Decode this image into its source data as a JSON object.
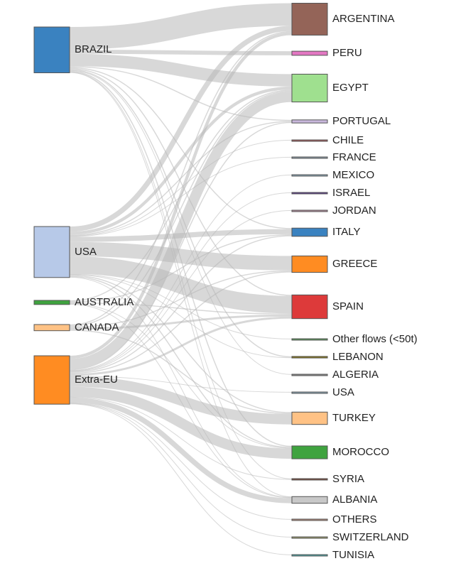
{
  "chart_data": {
    "type": "sankey",
    "sources": [
      {
        "id": "BRAZIL",
        "label": "BRAZIL",
        "color": "#3a82c0"
      },
      {
        "id": "USA_SRC",
        "label": "USA",
        "color": "#b7c9e8"
      },
      {
        "id": "AUSTRALIA",
        "label": "AUSTRALIA",
        "color": "#3fa33f"
      },
      {
        "id": "CANADA",
        "label": "CANADA",
        "color": "#ffc285"
      },
      {
        "id": "EXTRA_EU",
        "label": "Extra-EU",
        "color": "#ff8c22"
      }
    ],
    "targets": [
      {
        "id": "ARGENTINA",
        "label": "ARGENTINA",
        "color": "#946458"
      },
      {
        "id": "PERU",
        "label": "PERU",
        "color": "#e377c2"
      },
      {
        "id": "EGYPT",
        "label": "EGYPT",
        "color": "#9fe08f"
      },
      {
        "id": "PORTUGAL",
        "label": "PORTUGAL",
        "color": "#c9b8dc"
      },
      {
        "id": "CHILE",
        "label": "CHILE",
        "color": "#a55a5a"
      },
      {
        "id": "FRANCE",
        "label": "FRANCE",
        "color": "#8a9aa8"
      },
      {
        "id": "MEXICO",
        "label": "MEXICO",
        "color": "#8aa6b8"
      },
      {
        "id": "ISRAEL",
        "label": "ISRAEL",
        "color": "#5c3a8a"
      },
      {
        "id": "JORDAN",
        "label": "JORDAN",
        "color": "#b58a9a"
      },
      {
        "id": "ITALY",
        "label": "ITALY",
        "color": "#3a82c0"
      },
      {
        "id": "GREECE",
        "label": "GREECE",
        "color": "#ff8c22"
      },
      {
        "id": "SPAIN",
        "label": "SPAIN",
        "color": "#dd3a3a"
      },
      {
        "id": "OTHER_FLOWS",
        "label": "Other flows (<50t)",
        "color": "#5a9a5a"
      },
      {
        "id": "LEBANON",
        "label": "LEBANON",
        "color": "#8a7a1a"
      },
      {
        "id": "ALGERIA",
        "label": "ALGERIA",
        "color": "#8a8a8a"
      },
      {
        "id": "USA_TGT",
        "label": "USA",
        "color": "#8aa6b8"
      },
      {
        "id": "TURKEY",
        "label": "TURKEY",
        "color": "#ffc285"
      },
      {
        "id": "MOROCCO",
        "label": "MOROCCO",
        "color": "#3fa33f"
      },
      {
        "id": "SYRIA",
        "label": "SYRIA",
        "color": "#7a4a3a"
      },
      {
        "id": "ALBANIA",
        "label": "ALBANIA",
        "color": "#c8c8c8"
      },
      {
        "id": "OTHERS",
        "label": "OTHERS",
        "color": "#b58a7a"
      },
      {
        "id": "SWITZERLAND",
        "label": "SWITZERLAND",
        "color": "#9a9a6a"
      },
      {
        "id": "TUNISIA",
        "label": "TUNISIA",
        "color": "#4aa6a6"
      }
    ],
    "links": [
      {
        "source": "BRAZIL",
        "target": "ARGENTINA",
        "value": 22
      },
      {
        "source": "BRAZIL",
        "target": "PERU",
        "value": 4
      },
      {
        "source": "BRAZIL",
        "target": "EGYPT",
        "value": 12
      },
      {
        "source": "BRAZIL",
        "target": "PORTUGAL",
        "value": 1
      },
      {
        "source": "BRAZIL",
        "target": "ITALY",
        "value": 1
      },
      {
        "source": "BRAZIL",
        "target": "SPAIN",
        "value": 1
      },
      {
        "source": "BRAZIL",
        "target": "LEBANON",
        "value": 1
      },
      {
        "source": "BRAZIL",
        "target": "ALGERIA",
        "value": 0.5
      },
      {
        "source": "BRAZIL",
        "target": "MOROCCO",
        "value": 1
      },
      {
        "source": "BRAZIL",
        "target": "SYRIA",
        "value": 0.5
      },
      {
        "source": "BRAZIL",
        "target": "ALBANIA",
        "value": 0.5
      },
      {
        "source": "USA_SRC",
        "target": "ARGENTINA",
        "value": 5
      },
      {
        "source": "USA_SRC",
        "target": "EGYPT",
        "value": 3
      },
      {
        "source": "USA_SRC",
        "target": "PORTUGAL",
        "value": 1
      },
      {
        "source": "USA_SRC",
        "target": "CHILE",
        "value": 0.5
      },
      {
        "source": "USA_SRC",
        "target": "FRANCE",
        "value": 0.5
      },
      {
        "source": "USA_SRC",
        "target": "ITALY",
        "value": 5
      },
      {
        "source": "USA_SRC",
        "target": "GREECE",
        "value": 14
      },
      {
        "source": "USA_SRC",
        "target": "SPAIN",
        "value": 17
      },
      {
        "source": "USA_SRC",
        "target": "OTHER_FLOWS",
        "value": 0.5
      },
      {
        "source": "USA_SRC",
        "target": "LEBANON",
        "value": 0.5
      },
      {
        "source": "USA_SRC",
        "target": "TURKEY",
        "value": 1
      },
      {
        "source": "USA_SRC",
        "target": "MOROCCO",
        "value": 1
      },
      {
        "source": "USA_SRC",
        "target": "ALBANIA",
        "value": 0.5
      },
      {
        "source": "AUSTRALIA",
        "target": "EGYPT",
        "value": 1
      },
      {
        "source": "AUSTRALIA",
        "target": "ITALY",
        "value": 1
      },
      {
        "source": "AUSTRALIA",
        "target": "SPAIN",
        "value": 1
      },
      {
        "source": "AUSTRALIA",
        "target": "MOROCCO",
        "value": 0.5
      },
      {
        "source": "AUSTRALIA",
        "target": "ALBANIA",
        "value": 0.5
      },
      {
        "source": "CANADA",
        "target": "ARGENTINA",
        "value": 1
      },
      {
        "source": "CANADA",
        "target": "EGYPT",
        "value": 1
      },
      {
        "source": "CANADA",
        "target": "GREECE",
        "value": 1
      },
      {
        "source": "CANADA",
        "target": "SPAIN",
        "value": 2
      },
      {
        "source": "CANADA",
        "target": "TURKEY",
        "value": 1
      },
      {
        "source": "EXTRA_EU",
        "target": "ARGENTINA",
        "value": 3
      },
      {
        "source": "EXTRA_EU",
        "target": "EGYPT",
        "value": 10
      },
      {
        "source": "EXTRA_EU",
        "target": "PORTUGAL",
        "value": 1
      },
      {
        "source": "EXTRA_EU",
        "target": "MEXICO",
        "value": 0.5
      },
      {
        "source": "EXTRA_EU",
        "target": "ISRAEL",
        "value": 0.5
      },
      {
        "source": "EXTRA_EU",
        "target": "JORDAN",
        "value": 0.5
      },
      {
        "source": "EXTRA_EU",
        "target": "ITALY",
        "value": 1
      },
      {
        "source": "EXTRA_EU",
        "target": "GREECE",
        "value": 1
      },
      {
        "source": "EXTRA_EU",
        "target": "SPAIN",
        "value": 2
      },
      {
        "source": "EXTRA_EU",
        "target": "USA_TGT",
        "value": 0.5
      },
      {
        "source": "EXTRA_EU",
        "target": "TURKEY",
        "value": 10
      },
      {
        "source": "EXTRA_EU",
        "target": "MOROCCO",
        "value": 10
      },
      {
        "source": "EXTRA_EU",
        "target": "SYRIA",
        "value": 0.5
      },
      {
        "source": "EXTRA_EU",
        "target": "ALBANIA",
        "value": 5
      },
      {
        "source": "EXTRA_EU",
        "target": "OTHERS",
        "value": 0.5
      },
      {
        "source": "EXTRA_EU",
        "target": "SWITZERLAND",
        "value": 0.5
      },
      {
        "source": "EXTRA_EU",
        "target": "TUNISIA",
        "value": 0.5
      }
    ]
  }
}
